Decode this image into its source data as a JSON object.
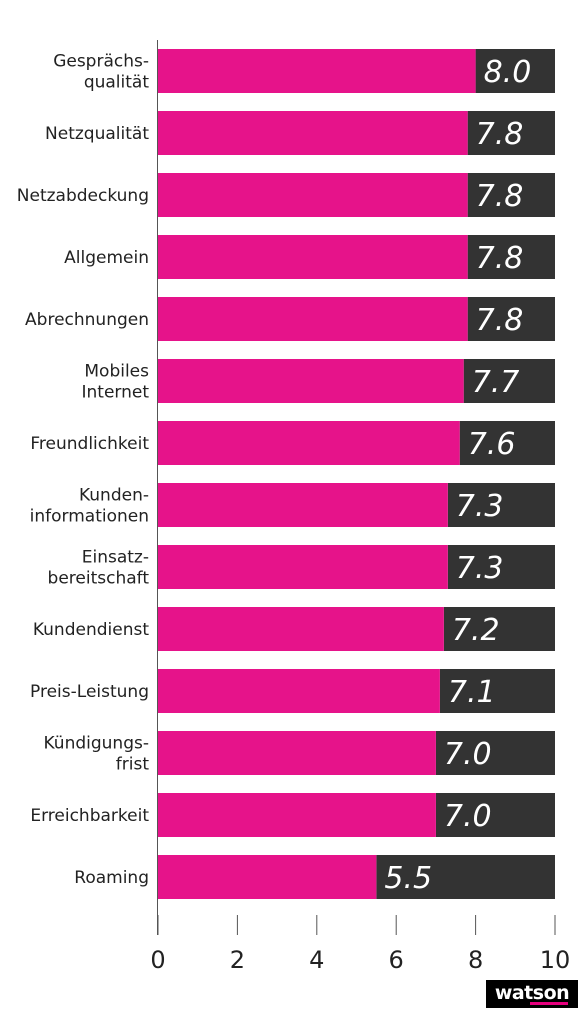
{
  "chart_data": {
    "type": "bar",
    "orientation": "horizontal",
    "stacked_remainder": true,
    "categories": [
      [
        "Gesprächs-",
        "qualität"
      ],
      [
        "Netzqualität"
      ],
      [
        "Netzabdeckung"
      ],
      [
        "Allgemein"
      ],
      [
        "Abrechnungen"
      ],
      [
        "Mobiles",
        "Internet"
      ],
      [
        "Freundlichkeit"
      ],
      [
        "Kunden-",
        "informationen"
      ],
      [
        "Einsatz-",
        "bereitschaft"
      ],
      [
        "Kundendienst"
      ],
      [
        "Preis-Leistung"
      ],
      [
        "Kündigungs-",
        "frist"
      ],
      [
        "Erreichbarkeit"
      ],
      [
        "Roaming"
      ]
    ],
    "values": [
      8.0,
      7.8,
      7.8,
      7.8,
      7.8,
      7.7,
      7.6,
      7.3,
      7.3,
      7.2,
      7.1,
      7.0,
      7.0,
      5.5
    ],
    "value_labels": [
      "8.0",
      "7.8",
      "7.8",
      "7.8",
      "7.8",
      "7.7",
      "7.6",
      "7.3",
      "7.3",
      "7.2",
      "7.1",
      "7.0",
      "7.0",
      "5.5"
    ],
    "xlim": [
      0,
      10
    ],
    "xticks": [
      0,
      2,
      4,
      6,
      8,
      10
    ],
    "title": "",
    "xlabel": "",
    "ylabel": "",
    "grid": false,
    "colors": {
      "value": "#e6138a",
      "remainder": "#333333",
      "value_label": "#ffffff"
    }
  },
  "branding": {
    "logo_text": "watson",
    "logo_bg": "#000000",
    "logo_accent": "#e6007e"
  }
}
